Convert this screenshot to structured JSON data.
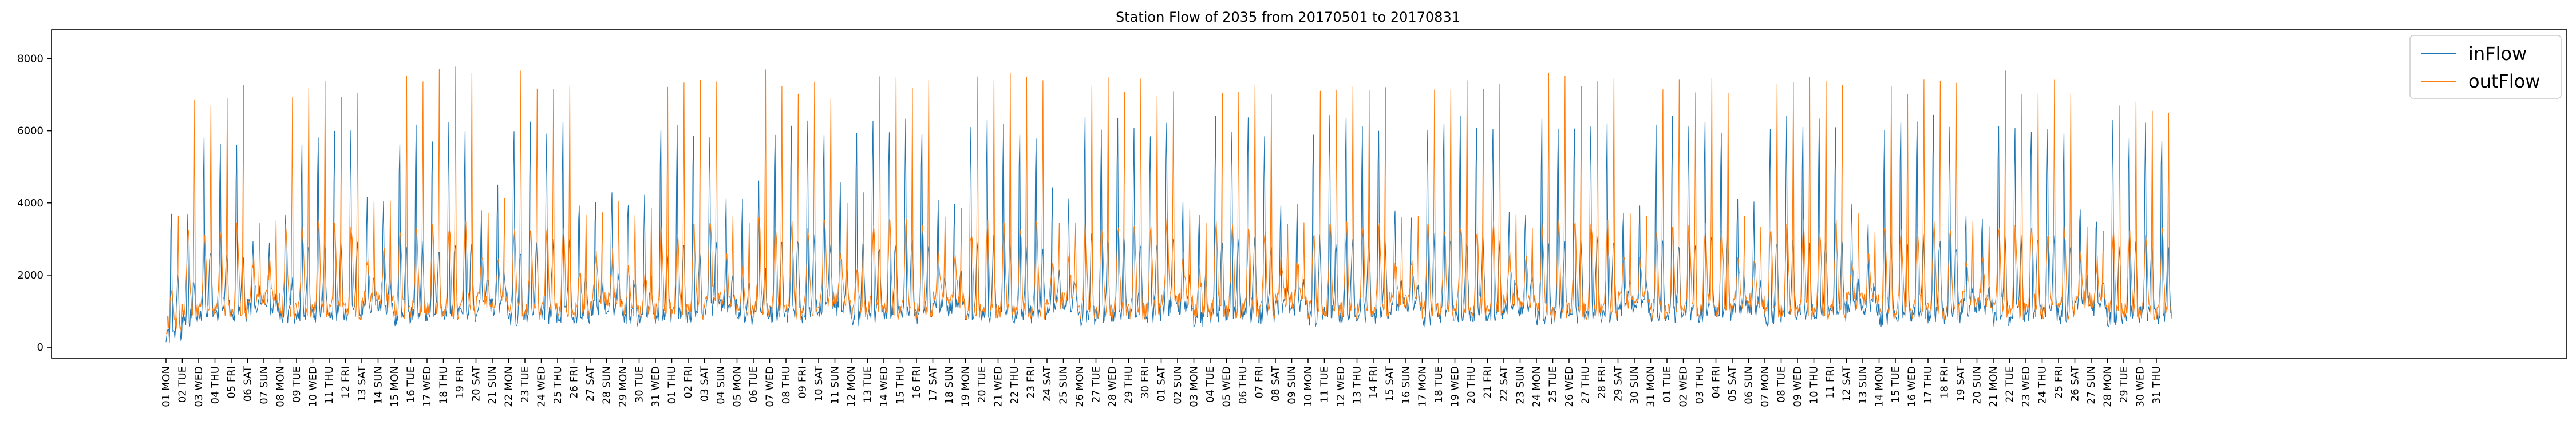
{
  "chart_data": {
    "type": "line",
    "title": "Station Flow of 2035 from 20170501 to 20170831",
    "xlabel": "",
    "ylabel": "",
    "ylim": [
      -300,
      8800
    ],
    "yticks": [
      0,
      2000,
      4000,
      6000,
      8000
    ],
    "grid": false,
    "legend": "top-right",
    "x_tick_labels": [
      "01 MON",
      "02 TUE",
      "03 WED",
      "04 THU",
      "05 FRI",
      "06 SAT",
      "07 SUN",
      "08 MON",
      "09 TUE",
      "10 WED",
      "11 THU",
      "12 FRI",
      "13 SAT",
      "14 SUN",
      "15 MON",
      "16 TUE",
      "17 WED",
      "18 THU",
      "19 FRI",
      "20 SAT",
      "21 SUN",
      "22 MON",
      "23 TUE",
      "24 WED",
      "25 THU",
      "26 FRI",
      "27 SAT",
      "28 SUN",
      "29 MON",
      "30 TUE",
      "31 WED",
      "01 THU",
      "02 FRI",
      "03 SAT",
      "04 SUN",
      "05 MON",
      "06 TUE",
      "07 WED",
      "08 THU",
      "09 FRI",
      "10 SAT",
      "11 SUN",
      "12 MON",
      "13 TUE",
      "14 WED",
      "15 THU",
      "16 FRI",
      "17 SAT",
      "18 SUN",
      "19 MON",
      "20 TUE",
      "21 WED",
      "22 THU",
      "23 FRI",
      "24 SAT",
      "25 SUN",
      "26 MON",
      "27 TUE",
      "28 WED",
      "29 THU",
      "30 FRI",
      "01 SAT",
      "02 SUN",
      "03 MON",
      "04 TUE",
      "05 WED",
      "06 THU",
      "07 FRI",
      "08 SAT",
      "09 SUN",
      "10 MON",
      "11 TUE",
      "12 WED",
      "13 THU",
      "14 FRI",
      "15 SAT",
      "16 SUN",
      "17 MON",
      "18 TUE",
      "19 WED",
      "20 THU",
      "21 FRI",
      "22 SAT",
      "23 SUN",
      "24 MON",
      "25 TUE",
      "26 WED",
      "27 THU",
      "28 FRI",
      "29 SAT",
      "30 SUN",
      "31 MON",
      "01 TUE",
      "02 WED",
      "03 THU",
      "04 FRI",
      "05 SAT",
      "06 SUN",
      "07 MON",
      "08 TUE",
      "09 WED",
      "10 THU",
      "11 FRI",
      "12 SAT",
      "13 SUN",
      "14 MON",
      "15 TUE",
      "16 WED",
      "17 THU",
      "18 FRI",
      "19 SAT",
      "20 SUN",
      "21 MON",
      "22 TUE",
      "23 WED",
      "24 THU",
      "25 FRI",
      "26 SAT",
      "27 SUN",
      "28 MON",
      "29 TUE",
      "30 WED",
      "31 THU"
    ],
    "series": [
      {
        "name": "inFlow",
        "color": "#1f77b4",
        "daily_peak": [
          4050,
          4100,
          6000,
          6200,
          6100,
          3300,
          2900,
          4000,
          6000,
          6100,
          6100,
          6300,
          4200,
          4400,
          6100,
          6300,
          6200,
          6400,
          6350,
          4000,
          4600,
          6300,
          6400,
          6400,
          6400,
          4400,
          4200,
          4300,
          4400,
          4300,
          6300,
          6400,
          6350,
          6400,
          4300,
          4200,
          4800,
          6300,
          6400,
          6500,
          6450,
          4700,
          6300,
          6500,
          6450,
          6500,
          6400,
          4300,
          4300,
          6400,
          6500,
          6400,
          6500,
          6300,
          4400,
          4200,
          6600,
          6400,
          6500,
          6500,
          6400,
          6850,
          4200,
          4100,
          6600,
          6500,
          6600,
          6400,
          4000,
          4000,
          6500,
          6600,
          6600,
          6500,
          6500,
          4000,
          4000,
          6600,
          6600,
          6600,
          6600,
          6500,
          4000,
          4100,
          6600,
          6500,
          6600,
          6500,
          6500,
          4000,
          3900,
          6500,
          6600,
          6500,
          6600,
          6500,
          4100,
          4000,
          6600,
          6600,
          6600,
          6500,
          6500,
          4000,
          3800,
          6600,
          6600,
          6600,
          6600,
          6500,
          3900,
          3700,
          6600,
          6600,
          6600,
          6500,
          6400,
          4100,
          3900,
          6500,
          6400,
          6500,
          6300
        ],
        "daily_base": [
          300,
          800,
          900,
          900,
          900,
          1100,
          1100,
          800,
          900,
          900,
          900,
          900,
          1100,
          1100,
          800,
          900,
          900,
          900,
          900,
          1100,
          1100,
          800,
          900,
          900,
          900,
          900,
          1100,
          1100,
          800,
          900,
          900,
          900,
          900,
          1100,
          1100,
          800,
          900,
          900,
          900,
          900,
          1100,
          1100,
          800,
          900,
          900,
          900,
          900,
          1100,
          1100,
          800,
          900,
          900,
          900,
          900,
          1100,
          1100,
          800,
          900,
          900,
          900,
          900,
          1100,
          1100,
          800,
          900,
          900,
          900,
          900,
          1100,
          1100,
          800,
          900,
          900,
          900,
          900,
          1100,
          1100,
          800,
          900,
          900,
          900,
          900,
          1100,
          1100,
          800,
          900,
          900,
          900,
          900,
          1100,
          1100,
          800,
          900,
          900,
          900,
          900,
          1100,
          1100,
          800,
          900,
          900,
          900,
          900,
          1100,
          1100,
          800,
          900,
          900,
          900,
          900,
          1100,
          1100,
          800,
          900,
          900,
          900,
          900,
          1100,
          1100,
          800,
          900,
          900,
          900
        ]
      },
      {
        "name": "outFlow",
        "color": "#ff7f0e",
        "daily_peak": [
          3900,
          7100,
          7300,
          7600,
          7700,
          3700,
          3500,
          7600,
          7700,
          7800,
          7700,
          7800,
          4000,
          4100,
          7900,
          8000,
          8000,
          8100,
          8000,
          3900,
          4200,
          8000,
          7900,
          7700,
          7700,
          4100,
          4000,
          4100,
          4000,
          4000,
          7900,
          7800,
          7800,
          7700,
          4000,
          3900,
          8200,
          7700,
          7700,
          7700,
          7600,
          4000,
          4300,
          7900,
          8100,
          7900,
          7800,
          3800,
          3900,
          7900,
          7800,
          7900,
          7800,
          7700,
          3800,
          3700,
          7900,
          7800,
          7700,
          7800,
          7700,
          7700,
          3800,
          3700,
          7800,
          7800,
          7800,
          7700,
          3700,
          3700,
          7800,
          7700,
          7700,
          7700,
          7800,
          3700,
          3600,
          7900,
          7800,
          7900,
          7800,
          7700,
          3700,
          3600,
          8000,
          8000,
          7900,
          8000,
          7800,
          3700,
          3600,
          7800,
          7900,
          7700,
          7900,
          7800,
          3800,
          3600,
          7800,
          8100,
          8000,
          7900,
          7800,
          3700,
          3600,
          7800,
          7700,
          7900,
          7700,
          7700,
          3700,
          3500,
          8300,
          7700,
          7700,
          7700,
          7600,
          3700,
          3600,
          7300,
          7400,
          7200,
          7000
        ],
        "daily_base": [
          600,
          1000,
          1000,
          1000,
          1000,
          1300,
          1300,
          1000,
          1000,
          1000,
          1000,
          1000,
          1300,
          1300,
          1000,
          1000,
          1000,
          1000,
          1000,
          1300,
          1300,
          1000,
          1000,
          1000,
          1000,
          1000,
          1300,
          1300,
          1000,
          1000,
          1000,
          1000,
          1000,
          1300,
          1300,
          1000,
          1000,
          1000,
          1000,
          1000,
          1300,
          1300,
          1000,
          1000,
          1000,
          1000,
          1000,
          1300,
          1300,
          1000,
          1000,
          1000,
          1000,
          1000,
          1300,
          1300,
          1000,
          1000,
          1000,
          1000,
          1000,
          1300,
          1300,
          1000,
          1000,
          1000,
          1000,
          1000,
          1300,
          1300,
          1000,
          1000,
          1000,
          1000,
          1000,
          1300,
          1300,
          1000,
          1000,
          1000,
          1000,
          1000,
          1300,
          1300,
          1000,
          1000,
          1000,
          1000,
          1000,
          1300,
          1300,
          1000,
          1000,
          1000,
          1000,
          1000,
          1300,
          1300,
          1000,
          1000,
          1000,
          1000,
          1000,
          1300,
          1300,
          1000,
          1000,
          1000,
          1000,
          1000,
          1300,
          1300,
          1000,
          1000,
          1000,
          1000,
          1000,
          1300,
          1300,
          1000,
          1000,
          1000,
          1000
        ]
      }
    ]
  }
}
